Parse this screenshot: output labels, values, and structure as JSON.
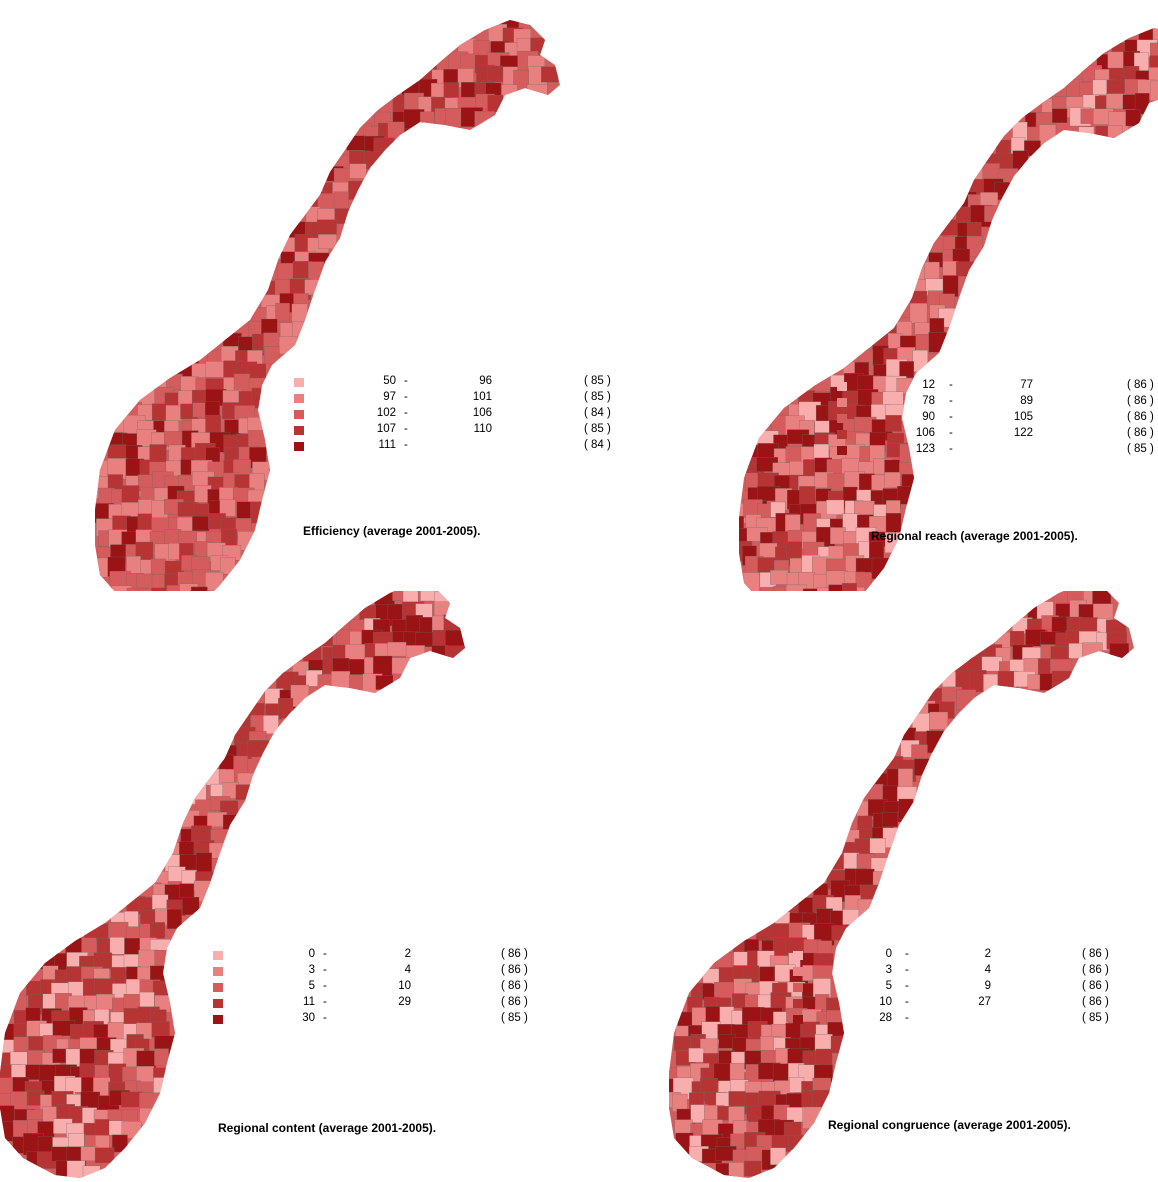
{
  "palette": [
    "#f9aeae",
    "#e98080",
    "#d45c5c",
    "#b73434",
    "#9a1416"
  ],
  "panels": [
    {
      "title": "Efficiency (average 2001-2005).",
      "legend": [
        {
          "lo": "50",
          "dash": "-",
          "hi": "96",
          "count": "( 85 )"
        },
        {
          "lo": "97",
          "dash": "-",
          "hi": "101",
          "count": "( 85 )"
        },
        {
          "lo": "102",
          "dash": "-",
          "hi": "106",
          "count": "( 84 )"
        },
        {
          "lo": "107",
          "dash": "-",
          "hi": "110",
          "count": "( 85 )"
        },
        {
          "lo": "111",
          "dash": "-",
          "hi": "",
          "count": "( 84 )"
        }
      ]
    },
    {
      "title": "Regional reach (average 2001-2005).",
      "legend": [
        {
          "lo": "12",
          "dash": "-",
          "hi": "77",
          "count": "( 86 )"
        },
        {
          "lo": "78",
          "dash": "-",
          "hi": "89",
          "count": "( 86 )"
        },
        {
          "lo": "90",
          "dash": "-",
          "hi": "105",
          "count": "( 86 )"
        },
        {
          "lo": "106",
          "dash": "-",
          "hi": "122",
          "count": "( 86 )"
        },
        {
          "lo": "123",
          "dash": "-",
          "hi": "",
          "count": "( 85 )"
        }
      ]
    },
    {
      "title": "Regional content (average 2001-2005).",
      "legend": [
        {
          "lo": "0",
          "dash": "-",
          "hi": "2",
          "count": "( 86 )"
        },
        {
          "lo": "3",
          "dash": "-",
          "hi": "4",
          "count": "( 86 )"
        },
        {
          "lo": "5",
          "dash": "-",
          "hi": "10",
          "count": "( 86 )"
        },
        {
          "lo": "11",
          "dash": "-",
          "hi": "29",
          "count": "( 86 )"
        },
        {
          "lo": "30",
          "dash": "-",
          "hi": "",
          "count": "( 85 )"
        }
      ]
    },
    {
      "title": "Regional congruence (average 2001-2005).",
      "legend": [
        {
          "lo": "0",
          "dash": "-",
          "hi": "2",
          "count": "( 86 )"
        },
        {
          "lo": "3",
          "dash": "-",
          "hi": "4",
          "count": "( 86 )"
        },
        {
          "lo": "5",
          "dash": "-",
          "hi": "9",
          "count": "( 86 )"
        },
        {
          "lo": "10",
          "dash": "-",
          "hi": "27",
          "count": "( 86 )"
        },
        {
          "lo": "28",
          "dash": "-",
          "hi": "",
          "count": "( 85 )"
        }
      ]
    }
  ]
}
